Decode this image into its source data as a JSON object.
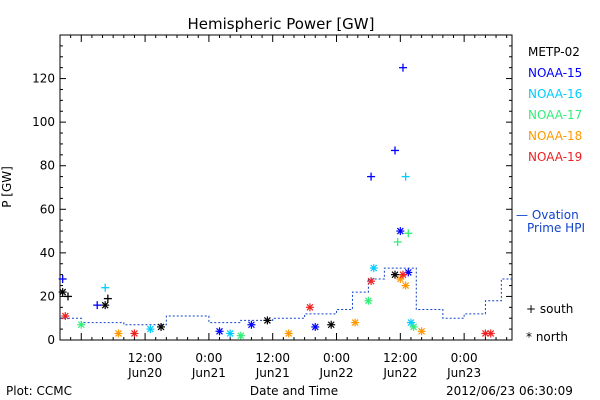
{
  "chart_data": {
    "type": "scatter",
    "title": "Hemispheric Power [GW]",
    "ylabel": "P [GW]",
    "xlabel": "Date and Time",
    "ylim": [
      0,
      140
    ],
    "xlim": [
      "2012-06-19T20:00",
      "2012-06-23T09:00"
    ],
    "yticks": [
      0,
      20,
      40,
      60,
      80,
      100,
      120
    ],
    "xticks": [
      {
        "t": "2012-06-20T12:00",
        "time": "12:00",
        "day": "Jun20"
      },
      {
        "t": "2012-06-21T00:00",
        "time": "0:00",
        "day": "Jun21"
      },
      {
        "t": "2012-06-21T12:00",
        "time": "12:00",
        "day": "Jun21"
      },
      {
        "t": "2012-06-22T00:00",
        "time": "0:00",
        "day": "Jun22"
      },
      {
        "t": "2012-06-22T12:00",
        "time": "12:00",
        "day": "Jun22"
      },
      {
        "t": "2012-06-23T00:00",
        "time": "0:00",
        "day": "Jun23"
      }
    ],
    "legend_position": "right",
    "series": [
      {
        "name": "METP-02",
        "color": "#000000",
        "points": [
          {
            "t": "2012-06-19T20:30",
            "v": 22,
            "m": "north"
          },
          {
            "t": "2012-06-19T21:30",
            "v": 20,
            "m": "south"
          },
          {
            "t": "2012-06-20T04:30",
            "v": 16,
            "m": "north"
          },
          {
            "t": "2012-06-20T05:00",
            "v": 19,
            "m": "south"
          },
          {
            "t": "2012-06-20T15:00",
            "v": 6,
            "m": "north"
          },
          {
            "t": "2012-06-21T11:00",
            "v": 9,
            "m": "north"
          },
          {
            "t": "2012-06-21T23:00",
            "v": 7,
            "m": "north"
          },
          {
            "t": "2012-06-22T11:00",
            "v": 30,
            "m": "north"
          }
        ]
      },
      {
        "name": "NOAA-15",
        "color": "#0000ff",
        "points": [
          {
            "t": "2012-06-19T20:30",
            "v": 28,
            "m": "south"
          },
          {
            "t": "2012-06-20T03:00",
            "v": 16,
            "m": "south"
          },
          {
            "t": "2012-06-21T02:00",
            "v": 4,
            "m": "north"
          },
          {
            "t": "2012-06-21T08:00",
            "v": 7,
            "m": "north"
          },
          {
            "t": "2012-06-21T20:00",
            "v": 6,
            "m": "north"
          },
          {
            "t": "2012-06-22T06:30",
            "v": 75,
            "m": "south"
          },
          {
            "t": "2012-06-22T11:00",
            "v": 87,
            "m": "south"
          },
          {
            "t": "2012-06-22T12:00",
            "v": 50,
            "m": "north"
          },
          {
            "t": "2012-06-22T12:30",
            "v": 125,
            "m": "south"
          },
          {
            "t": "2012-06-22T13:30",
            "v": 31,
            "m": "north"
          }
        ]
      },
      {
        "name": "NOAA-16",
        "color": "#00ccff",
        "points": [
          {
            "t": "2012-06-20T04:30",
            "v": 24,
            "m": "south"
          },
          {
            "t": "2012-06-20T13:00",
            "v": 5,
            "m": "north"
          },
          {
            "t": "2012-06-21T04:00",
            "v": 3,
            "m": "north"
          },
          {
            "t": "2012-06-22T07:00",
            "v": 33,
            "m": "north"
          },
          {
            "t": "2012-06-22T13:00",
            "v": 75,
            "m": "south"
          },
          {
            "t": "2012-06-22T14:00",
            "v": 8,
            "m": "north"
          }
        ]
      },
      {
        "name": "NOAA-17",
        "color": "#33ee77",
        "points": [
          {
            "t": "2012-06-20T00:00",
            "v": 7,
            "m": "north"
          },
          {
            "t": "2012-06-21T06:00",
            "v": 2,
            "m": "north"
          },
          {
            "t": "2012-06-22T06:00",
            "v": 18,
            "m": "north"
          },
          {
            "t": "2012-06-22T11:30",
            "v": 45,
            "m": "south"
          },
          {
            "t": "2012-06-22T13:30",
            "v": 49,
            "m": "south"
          },
          {
            "t": "2012-06-22T14:30",
            "v": 6,
            "m": "north"
          }
        ]
      },
      {
        "name": "NOAA-18",
        "color": "#ff9900",
        "points": [
          {
            "t": "2012-06-20T07:00",
            "v": 3,
            "m": "north"
          },
          {
            "t": "2012-06-21T15:00",
            "v": 3,
            "m": "north"
          },
          {
            "t": "2012-06-22T03:30",
            "v": 8,
            "m": "north"
          },
          {
            "t": "2012-06-22T12:00",
            "v": 28,
            "m": "north"
          },
          {
            "t": "2012-06-22T13:00",
            "v": 25,
            "m": "north"
          },
          {
            "t": "2012-06-22T16:00",
            "v": 4,
            "m": "north"
          }
        ]
      },
      {
        "name": "NOAA-19",
        "color": "#ee2222",
        "points": [
          {
            "t": "2012-06-19T21:00",
            "v": 11,
            "m": "north"
          },
          {
            "t": "2012-06-20T10:00",
            "v": 3,
            "m": "north"
          },
          {
            "t": "2012-06-21T19:00",
            "v": 15,
            "m": "north"
          },
          {
            "t": "2012-06-22T06:30",
            "v": 27,
            "m": "north"
          },
          {
            "t": "2012-06-22T12:30",
            "v": 30,
            "m": "north"
          },
          {
            "t": "2012-06-23T04:00",
            "v": 3,
            "m": "north"
          },
          {
            "t": "2012-06-23T05:00",
            "v": 3,
            "m": "north"
          }
        ]
      }
    ],
    "model": {
      "name": "Ovation Prime HPI",
      "label_line1": "— Ovation",
      "label_line2": "Prime HPI",
      "color": "#1144cc",
      "steps": [
        {
          "t": "2012-06-19T20:00",
          "v": 10
        },
        {
          "t": "2012-06-20T00:00",
          "v": 8
        },
        {
          "t": "2012-06-20T08:00",
          "v": 7
        },
        {
          "t": "2012-06-20T16:00",
          "v": 11
        },
        {
          "t": "2012-06-21T00:00",
          "v": 8
        },
        {
          "t": "2012-06-21T06:00",
          "v": 9
        },
        {
          "t": "2012-06-21T12:00",
          "v": 10
        },
        {
          "t": "2012-06-21T18:00",
          "v": 12
        },
        {
          "t": "2012-06-22T00:00",
          "v": 14
        },
        {
          "t": "2012-06-22T03:00",
          "v": 22
        },
        {
          "t": "2012-06-22T06:00",
          "v": 28
        },
        {
          "t": "2012-06-22T09:00",
          "v": 33
        },
        {
          "t": "2012-06-22T15:00",
          "v": 14
        },
        {
          "t": "2012-06-22T20:00",
          "v": 10
        },
        {
          "t": "2012-06-23T00:00",
          "v": 12
        },
        {
          "t": "2012-06-23T04:00",
          "v": 18
        },
        {
          "t": "2012-06-23T07:00",
          "v": 28
        }
      ]
    },
    "marker_legend": [
      {
        "symbol": "+",
        "label": "south"
      },
      {
        "symbol": "*",
        "label": "north"
      }
    ]
  },
  "footer": {
    "left": "Plot: CCMC",
    "right": "2012/06/23 06:30:09"
  }
}
